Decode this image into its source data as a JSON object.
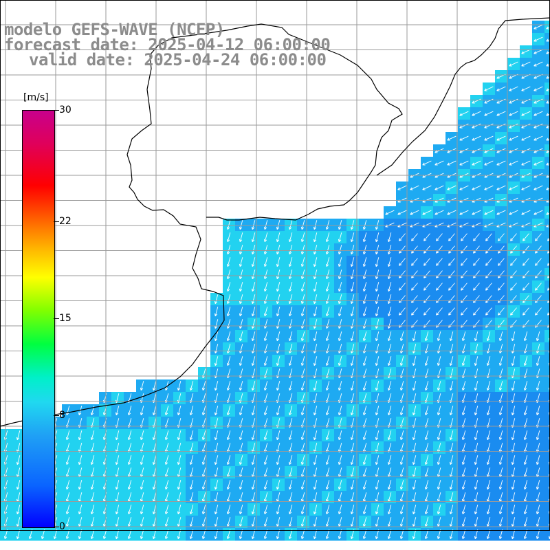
{
  "title": {
    "line1": "modelo GEFS-WAVE (NCEP)",
    "line2": "forecast date: 2025-04-12 06:00:00",
    "line3": "valid date: 2025-04-24 06:00:00"
  },
  "colorbar": {
    "unit": "[m/s]",
    "ticks": [
      {
        "value": 30,
        "label": "30"
      },
      {
        "value": 22,
        "label": "22"
      },
      {
        "value": 15,
        "label": "15"
      },
      {
        "value": 8,
        "label": "8"
      },
      {
        "value": 0,
        "label": "0"
      }
    ],
    "min": 0,
    "max": 30
  },
  "map": {
    "variable": "wind speed and direction",
    "dominant_direction": "from north-east, pointing south-west / south",
    "colors": {
      "land": "#ffffff",
      "coast": "#000000",
      "grid": "#9a9a9a",
      "arrow": "#ffffff",
      "speed_6": "#1a8cf0",
      "speed_7": "#1eaaf2",
      "speed_8": "#22d2f0"
    }
  }
}
